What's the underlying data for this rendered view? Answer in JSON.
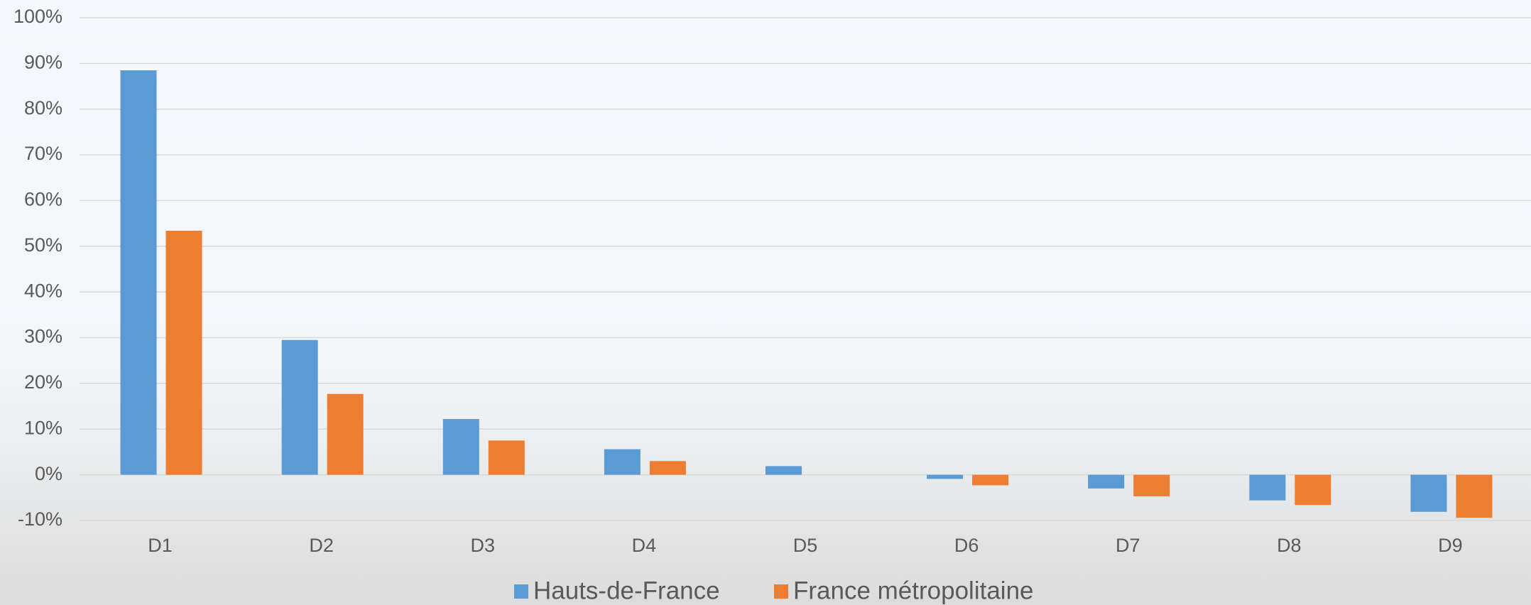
{
  "chart_data": {
    "type": "bar",
    "categories": [
      "D1",
      "D2",
      "D3",
      "D4",
      "D5",
      "D6",
      "D7",
      "D8",
      "D9"
    ],
    "series": [
      {
        "name": "Hauts-de-France",
        "color": "#5b9bd5",
        "values": [
          88.5,
          29.5,
          12.2,
          5.6,
          1.9,
          -0.9,
          -3.0,
          -5.6,
          -8.1
        ]
      },
      {
        "name": "France métropolitaine",
        "color": "#ed7d31",
        "values": [
          53.4,
          17.7,
          7.5,
          3.0,
          0,
          -2.3,
          -4.7,
          -6.6,
          -9.4
        ]
      }
    ],
    "ylim": [
      -10,
      100
    ],
    "yticks": [
      {
        "value": -10,
        "label": "-10%"
      },
      {
        "value": 0,
        "label": "0%"
      },
      {
        "value": 10,
        "label": "10%"
      },
      {
        "value": 20,
        "label": "20%"
      },
      {
        "value": 30,
        "label": "30%"
      },
      {
        "value": 40,
        "label": "40%"
      },
      {
        "value": 50,
        "label": "50%"
      },
      {
        "value": 60,
        "label": "60%"
      },
      {
        "value": 70,
        "label": "70%"
      },
      {
        "value": 80,
        "label": "80%"
      },
      {
        "value": 90,
        "label": "90%"
      },
      {
        "value": 100,
        "label": "100%"
      }
    ],
    "grid": true,
    "legend": "bottom"
  }
}
